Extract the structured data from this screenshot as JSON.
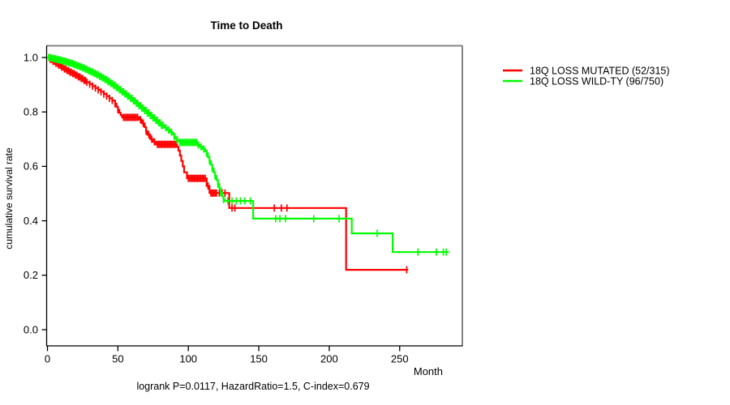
{
  "title": "Time to Death",
  "footer": "logrank P=0.0117, HazardRatio=1.5, C-index=0.679",
  "x_label": "Month",
  "y_label": "cumulative survival rate",
  "legend": {
    "items": [
      {
        "label": "18Q LOSS MUTATED (52/315)",
        "color": "#ff0000"
      },
      {
        "label": "18Q LOSS WILD-TY (96/750)",
        "color": "#00ff00"
      }
    ]
  },
  "colors": {
    "mutated": "#ff0000",
    "wildtype": "#00ff00",
    "frame_gray": "#848484",
    "axis_black": "#000000"
  },
  "chart_data": {
    "type": "line",
    "subtype": "kaplan-meier-step",
    "title": "Time to Death",
    "xlabel": "Month",
    "ylabel": "cumulative survival rate",
    "xlim": [
      0,
      294
    ],
    "ylim": [
      0.0,
      1.0
    ],
    "x_ticks": [
      0,
      50,
      100,
      150,
      200,
      250
    ],
    "y_ticks": [
      0.0,
      0.2,
      0.4,
      0.6,
      0.8,
      1.0
    ],
    "grid": false,
    "legend_position": "right-outside",
    "annotation": "logrank P=0.0117, HazardRatio=1.5, C-index=0.679",
    "series": [
      {
        "name": "18Q LOSS MUTATED (52/315)",
        "events": 52,
        "n": 315,
        "color": "#ff0000",
        "end_month": 256,
        "steps": [
          [
            0,
            1
          ],
          [
            2,
            0.993
          ],
          [
            4,
            0.986
          ],
          [
            6,
            0.979
          ],
          [
            8,
            0.972
          ],
          [
            10,
            0.965
          ],
          [
            12,
            0.958
          ],
          [
            14,
            0.952
          ],
          [
            16,
            0.946
          ],
          [
            18,
            0.941
          ],
          [
            20,
            0.935
          ],
          [
            22,
            0.929
          ],
          [
            24,
            0.923
          ],
          [
            26,
            0.916
          ],
          [
            28,
            0.909
          ],
          [
            30,
            0.902
          ],
          [
            32,
            0.895
          ],
          [
            34,
            0.888
          ],
          [
            36,
            0.881
          ],
          [
            38,
            0.874
          ],
          [
            40,
            0.866
          ],
          [
            42,
            0.858
          ],
          [
            44,
            0.85
          ],
          [
            46,
            0.842
          ],
          [
            48,
            0.83
          ],
          [
            49,
            0.819
          ],
          [
            50,
            0.808
          ],
          [
            51,
            0.797
          ],
          [
            52,
            0.788
          ],
          [
            53,
            0.78
          ],
          [
            65,
            0.772
          ],
          [
            67,
            0.758
          ],
          [
            69,
            0.744
          ],
          [
            70,
            0.73
          ],
          [
            71,
            0.716
          ],
          [
            73,
            0.7
          ],
          [
            75,
            0.69
          ],
          [
            77,
            0.681
          ],
          [
            92,
            0.672
          ],
          [
            93,
            0.658
          ],
          [
            94,
            0.64
          ],
          [
            95,
            0.62
          ],
          [
            96,
            0.6
          ],
          [
            97,
            0.578
          ],
          [
            99,
            0.556
          ],
          [
            113,
            0.528
          ],
          [
            115,
            0.502
          ],
          [
            129,
            0.447
          ],
          [
            212,
            0.22
          ]
        ],
        "censor_times": [
          1,
          2,
          3,
          4,
          5,
          6,
          7,
          8,
          9,
          10,
          11,
          12,
          13,
          14,
          15,
          16,
          17,
          18,
          19,
          20,
          21,
          22,
          23,
          24,
          25,
          26,
          27,
          28,
          30,
          32,
          34,
          36,
          38,
          40,
          42,
          44,
          46,
          48,
          50,
          54,
          55,
          56,
          57,
          58,
          59,
          60,
          61,
          62,
          63,
          64,
          66,
          68,
          70,
          72,
          74,
          76,
          78,
          79,
          80,
          81,
          82,
          83,
          84,
          85,
          86,
          87,
          88,
          89,
          90,
          91,
          100,
          101,
          102,
          103,
          104,
          105,
          106,
          107,
          108,
          109,
          110,
          111,
          112,
          114,
          116,
          117,
          118,
          119,
          120,
          122,
          124,
          126,
          131,
          133,
          161,
          166,
          170,
          255
        ]
      },
      {
        "name": "18Q LOSS WILD-TY (96/750)",
        "events": 96,
        "n": 750,
        "color": "#00ff00",
        "end_month": 285,
        "steps": [
          [
            0,
            1
          ],
          [
            3,
            0.997
          ],
          [
            5,
            0.995
          ],
          [
            7,
            0.992
          ],
          [
            9,
            0.99
          ],
          [
            11,
            0.987
          ],
          [
            13,
            0.984
          ],
          [
            15,
            0.981
          ],
          [
            17,
            0.978
          ],
          [
            19,
            0.974
          ],
          [
            21,
            0.97
          ],
          [
            23,
            0.966
          ],
          [
            25,
            0.962
          ],
          [
            27,
            0.957
          ],
          [
            29,
            0.952
          ],
          [
            31,
            0.947
          ],
          [
            33,
            0.942
          ],
          [
            35,
            0.937
          ],
          [
            37,
            0.931
          ],
          [
            39,
            0.925
          ],
          [
            41,
            0.919
          ],
          [
            43,
            0.912
          ],
          [
            45,
            0.905
          ],
          [
            47,
            0.898
          ],
          [
            49,
            0.89
          ],
          [
            51,
            0.882
          ],
          [
            53,
            0.874
          ],
          [
            55,
            0.866
          ],
          [
            57,
            0.858
          ],
          [
            59,
            0.85
          ],
          [
            61,
            0.841
          ],
          [
            63,
            0.832
          ],
          [
            65,
            0.823
          ],
          [
            67,
            0.814
          ],
          [
            69,
            0.805
          ],
          [
            71,
            0.796
          ],
          [
            73,
            0.787
          ],
          [
            75,
            0.778
          ],
          [
            77,
            0.769
          ],
          [
            79,
            0.76
          ],
          [
            81,
            0.751
          ],
          [
            83,
            0.742
          ],
          [
            85,
            0.734
          ],
          [
            87,
            0.726
          ],
          [
            89,
            0.718
          ],
          [
            90,
            0.71
          ],
          [
            91,
            0.703
          ],
          [
            92,
            0.697
          ],
          [
            93,
            0.692
          ],
          [
            94,
            0.688
          ],
          [
            107,
            0.679
          ],
          [
            108,
            0.672
          ],
          [
            110,
            0.664
          ],
          [
            112,
            0.655
          ],
          [
            113,
            0.648
          ],
          [
            114,
            0.634
          ],
          [
            115,
            0.62
          ],
          [
            116,
            0.606
          ],
          [
            117,
            0.592
          ],
          [
            118,
            0.578
          ],
          [
            119,
            0.565
          ],
          [
            120,
            0.55
          ],
          [
            121,
            0.535
          ],
          [
            122,
            0.52
          ],
          [
            123,
            0.505
          ],
          [
            124,
            0.49
          ],
          [
            125,
            0.478
          ],
          [
            126,
            0.473
          ],
          [
            146,
            0.408
          ],
          [
            216,
            0.354
          ],
          [
            245,
            0.285
          ]
        ],
        "censor_times": [
          1,
          2,
          3,
          4,
          5,
          6,
          7,
          8,
          9,
          10,
          11,
          12,
          13,
          14,
          15,
          16,
          17,
          18,
          19,
          20,
          21,
          22,
          23,
          24,
          25,
          26,
          27,
          28,
          29,
          30,
          31,
          32,
          33,
          34,
          35,
          36,
          37,
          38,
          39,
          40,
          41,
          42,
          43,
          44,
          45,
          46,
          47,
          48,
          49,
          50,
          51,
          52,
          53,
          54,
          55,
          56,
          57,
          58,
          59,
          60,
          61,
          62,
          63,
          64,
          65,
          66,
          67,
          68,
          69,
          70,
          71,
          72,
          73,
          74,
          75,
          76,
          77,
          78,
          79,
          80,
          81,
          82,
          84,
          86,
          88,
          90,
          92,
          94,
          95,
          96,
          97,
          98,
          99,
          100,
          101,
          102,
          103,
          104,
          105,
          106,
          107,
          109,
          111,
          113,
          115,
          117,
          119,
          121,
          123,
          125,
          128,
          131,
          134,
          137,
          140,
          144,
          162,
          165,
          169,
          189,
          207,
          234,
          263,
          276,
          281,
          283
        ]
      }
    ]
  }
}
